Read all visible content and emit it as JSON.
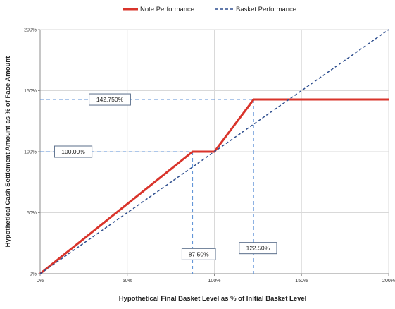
{
  "chart_data": {
    "type": "line",
    "xlabel": "Hypothetical Final Basket Level as % of Initial Basket Level",
    "ylabel": "Hypothetical Cash Settlement Amount as % of Face Amount",
    "xlim": [
      0,
      200
    ],
    "ylim": [
      0,
      200
    ],
    "x_ticks": [
      "0%",
      "50%",
      "100%",
      "150%",
      "200%"
    ],
    "y_ticks": [
      "0%",
      "50%",
      "100%",
      "150%",
      "200%"
    ],
    "grid": true,
    "legend_position": "top",
    "series": [
      {
        "name": "Note Performance",
        "style": "solid",
        "color": "#d9342b",
        "x": [
          0,
          87.5,
          100,
          122.5,
          200
        ],
        "y": [
          0,
          100,
          100,
          142.75,
          142.75
        ]
      },
      {
        "name": "Basket Performance",
        "style": "dashed",
        "color": "#2f4f8f",
        "x": [
          0,
          200
        ],
        "y": [
          0,
          200
        ]
      }
    ],
    "reference_lines": [
      {
        "orientation": "horizontal",
        "y": 142.75,
        "x_end": 122.5,
        "color": "#5b8fd6"
      },
      {
        "orientation": "horizontal",
        "y": 100,
        "x_end": 87.5,
        "color": "#5b8fd6"
      },
      {
        "orientation": "vertical",
        "x": 87.5,
        "y_end": 100,
        "color": "#5b8fd6"
      },
      {
        "orientation": "vertical",
        "x": 122.5,
        "y_end": 142.75,
        "color": "#5b8fd6"
      }
    ],
    "annotations": [
      {
        "text": "142.750%",
        "x": 40,
        "y": 142.75
      },
      {
        "text": "100.00%",
        "x": 19,
        "y": 100
      },
      {
        "text": "87.50%",
        "x": 91,
        "y": 16
      },
      {
        "text": "122.50%",
        "x": 125,
        "y": 21
      }
    ]
  }
}
